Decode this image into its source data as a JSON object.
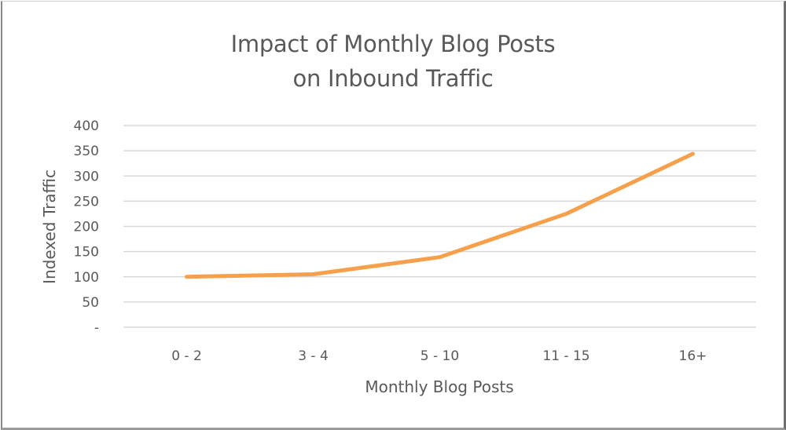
{
  "chart_data": {
    "type": "line",
    "title": "Impact of Monthly Blog Posts on Inbound Traffic",
    "title_lines": [
      "Impact of Monthly Blog Posts",
      "on Inbound Traffic"
    ],
    "xlabel": "Monthly Blog Posts",
    "ylabel": "Indexed Traffic",
    "categories": [
      "0 - 2",
      "3 - 4",
      "5 - 10",
      "11 - 15",
      "16+"
    ],
    "series": [
      {
        "name": "Indexed Traffic",
        "values": [
          100,
          105,
          139,
          225,
          344
        ],
        "color": "#f7a04b"
      }
    ],
    "ylim": [
      0,
      400
    ],
    "yticks": [
      0,
      50,
      100,
      150,
      200,
      250,
      300,
      350,
      400
    ],
    "ytick_labels": [
      "-",
      "50",
      "100",
      "150",
      "200",
      "250",
      "300",
      "350",
      "400"
    ],
    "grid": true,
    "legend": "none"
  }
}
